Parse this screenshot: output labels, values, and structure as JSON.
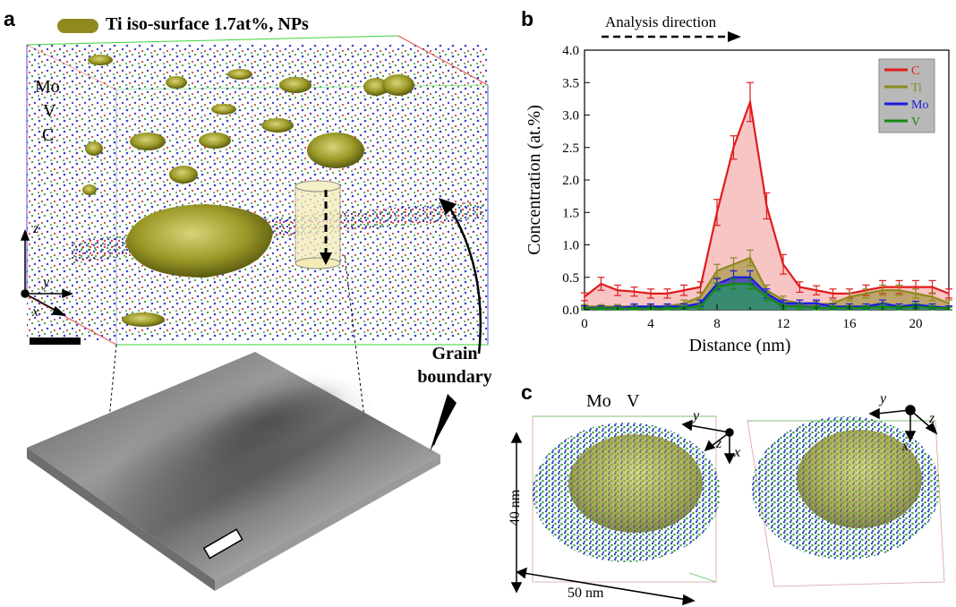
{
  "panels": {
    "a": {
      "letter": "a",
      "legend_label": "Ti iso-surface 1.7at%, NPs",
      "legend_color": "#8e8a20",
      "elements": [
        {
          "label": "Mo",
          "color": "#1f1fc8"
        },
        {
          "label": "V",
          "color": "#1a8a1a"
        },
        {
          "label": "C",
          "color": "#d01818"
        }
      ],
      "axes": {
        "z": "z",
        "y": "y",
        "x": "x"
      },
      "annotation": {
        "line1": "Grain",
        "line2": "boundary"
      }
    },
    "b": {
      "letter": "b",
      "direction_label": "Analysis direction"
    },
    "c": {
      "letter": "c",
      "elements": [
        {
          "label": "Mo",
          "color": "#1f1fc8"
        },
        {
          "label": "V",
          "color": "#1a8a1a"
        }
      ],
      "axes_left": {
        "y": "y",
        "z": "z",
        "x": "x"
      },
      "axes_right": {
        "y": "y",
        "x": "x",
        "z": "z"
      },
      "dim_height": "40 nm",
      "dim_width": "50 nm"
    }
  },
  "chart_data": {
    "type": "line",
    "xlabel": "Distance (nm)",
    "ylabel": "Concentration (at.%)",
    "xlim": [
      0,
      22
    ],
    "ylim": [
      0,
      4.0
    ],
    "xticks": [
      0,
      4,
      8,
      12,
      16,
      20
    ],
    "yticks": [
      0.0,
      0.5,
      1.0,
      1.5,
      2.0,
      2.5,
      3.0,
      3.5,
      4.0
    ],
    "legend_position": "top-right",
    "x": [
      0,
      1,
      2,
      3,
      4,
      5,
      6,
      7,
      8,
      9,
      10,
      11,
      12,
      13,
      14,
      15,
      16,
      17,
      18,
      19,
      20,
      21,
      22
    ],
    "series": [
      {
        "name": "C",
        "color": "#e01c1c",
        "fill": "#f6b2b2",
        "values": [
          0.2,
          0.4,
          0.3,
          0.28,
          0.25,
          0.25,
          0.3,
          0.35,
          1.5,
          2.5,
          3.2,
          1.6,
          0.7,
          0.35,
          0.3,
          0.25,
          0.25,
          0.3,
          0.35,
          0.35,
          0.35,
          0.35,
          0.25
        ],
        "errors": [
          0.06,
          0.1,
          0.08,
          0.07,
          0.07,
          0.07,
          0.08,
          0.08,
          0.2,
          0.18,
          0.3,
          0.2,
          0.15,
          0.08,
          0.07,
          0.07,
          0.07,
          0.08,
          0.1,
          0.1,
          0.1,
          0.1,
          0.07
        ]
      },
      {
        "name": "Ti",
        "color": "#8e8a20",
        "fill": "#8e8a20",
        "values": [
          0.05,
          0.05,
          0.05,
          0.05,
          0.05,
          0.05,
          0.1,
          0.2,
          0.6,
          0.7,
          0.8,
          0.3,
          0.15,
          0.1,
          0.08,
          0.1,
          0.2,
          0.25,
          0.3,
          0.3,
          0.25,
          0.2,
          0.1
        ],
        "errors": [
          0.03,
          0.03,
          0.03,
          0.03,
          0.03,
          0.03,
          0.05,
          0.06,
          0.1,
          0.1,
          0.12,
          0.08,
          0.06,
          0.05,
          0.05,
          0.05,
          0.06,
          0.07,
          0.08,
          0.08,
          0.07,
          0.06,
          0.05
        ]
      },
      {
        "name": "Mo",
        "color": "#1a1ae0",
        "fill": "#1a1ae0",
        "values": [
          0.03,
          0.03,
          0.03,
          0.05,
          0.05,
          0.05,
          0.05,
          0.1,
          0.4,
          0.5,
          0.5,
          0.25,
          0.1,
          0.1,
          0.1,
          0.05,
          0.05,
          0.05,
          0.1,
          0.05,
          0.08,
          0.05,
          0.03
        ],
        "errors": [
          0.03,
          0.03,
          0.03,
          0.04,
          0.04,
          0.04,
          0.04,
          0.05,
          0.08,
          0.1,
          0.1,
          0.07,
          0.05,
          0.05,
          0.05,
          0.04,
          0.04,
          0.04,
          0.05,
          0.04,
          0.05,
          0.04,
          0.03
        ]
      },
      {
        "name": "V",
        "color": "#138a13",
        "fill": "#2f9a60",
        "values": [
          0.02,
          0.02,
          0.02,
          0.02,
          0.02,
          0.02,
          0.03,
          0.05,
          0.35,
          0.4,
          0.4,
          0.2,
          0.05,
          0.05,
          0.03,
          0.03,
          0.03,
          0.03,
          0.05,
          0.03,
          0.05,
          0.03,
          0.02
        ],
        "errors": [
          0.02,
          0.02,
          0.02,
          0.02,
          0.02,
          0.02,
          0.03,
          0.04,
          0.06,
          0.08,
          0.08,
          0.06,
          0.04,
          0.04,
          0.03,
          0.03,
          0.03,
          0.03,
          0.04,
          0.03,
          0.04,
          0.03,
          0.02
        ]
      }
    ]
  }
}
